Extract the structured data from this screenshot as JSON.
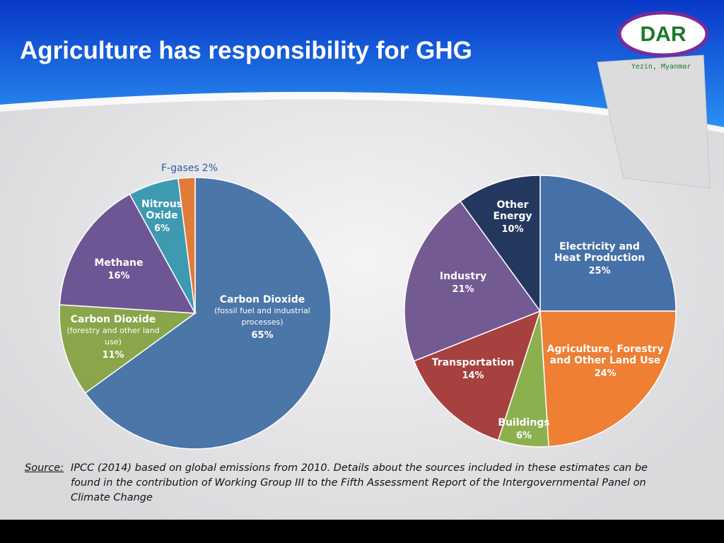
{
  "title": "Agriculture has responsibility for GHG",
  "logo": {
    "text": "DAR",
    "caption": "Yezin, Myanmar"
  },
  "chart_data": [
    {
      "type": "pie",
      "categories": [
        "Carbon Dioxide",
        "Carbon Dioxide",
        "Methane",
        "Nitrous Oxide",
        "F-gases"
      ],
      "category_notes": [
        "(fossil fuel and industrial processes)",
        "(forestry and other land use)",
        null,
        null,
        null
      ],
      "values": [
        65,
        11,
        16,
        6,
        2
      ],
      "value_labels": [
        "65%",
        "11%",
        "16%",
        "6%",
        "2%"
      ],
      "colors": [
        "#4a76a8",
        "#8aa64a",
        "#6e5594",
        "#3d9ab0",
        "#e07b39"
      ]
    },
    {
      "type": "pie",
      "categories": [
        "Electricity and Heat Production",
        "Agriculture, Forestry and Other Land Use",
        "Buildings",
        "Transportation",
        "Industry",
        "Other Energy"
      ],
      "values": [
        25,
        24,
        6,
        14,
        21,
        10
      ],
      "value_labels": [
        "25%",
        "24%",
        "6%",
        "14%",
        "21%",
        "10%"
      ],
      "colors": [
        "#4670a8",
        "#ee7f33",
        "#8db04f",
        "#a64140",
        "#735a92",
        "#24375e"
      ]
    }
  ],
  "source": {
    "label": "Source:",
    "text": "IPCC (2014) based on global emissions from 2010. Details about the sources included in these estimates can be found in the contribution of Working  Group III to the Fifth Assessment Report of the Intergovernmental Panel on Climate Change"
  }
}
